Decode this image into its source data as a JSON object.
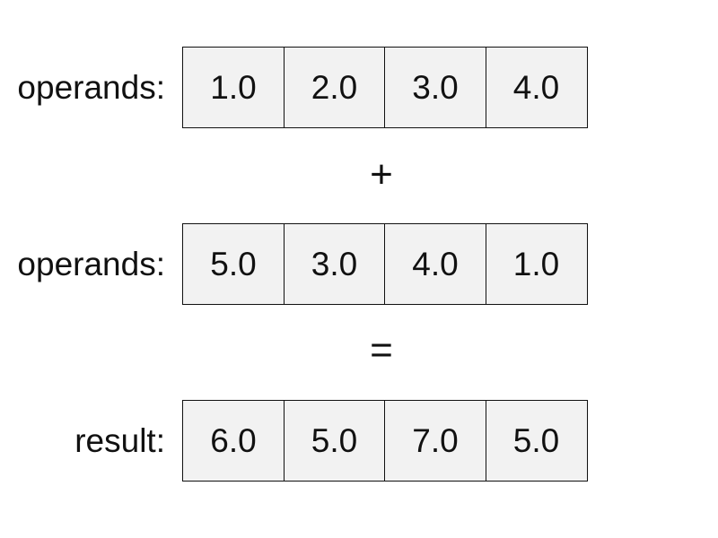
{
  "rows": [
    {
      "label": "operands:",
      "values": [
        "1.0",
        "2.0",
        "3.0",
        "4.0"
      ]
    },
    {
      "label": "operands:",
      "values": [
        "5.0",
        "3.0",
        "4.0",
        "1.0"
      ]
    },
    {
      "label": "result:",
      "values": [
        "6.0",
        "5.0",
        "7.0",
        "5.0"
      ]
    }
  ],
  "operators": [
    "+",
    "="
  ],
  "colors": {
    "cell_fill": "#f2f2f2",
    "border": "#111111"
  }
}
